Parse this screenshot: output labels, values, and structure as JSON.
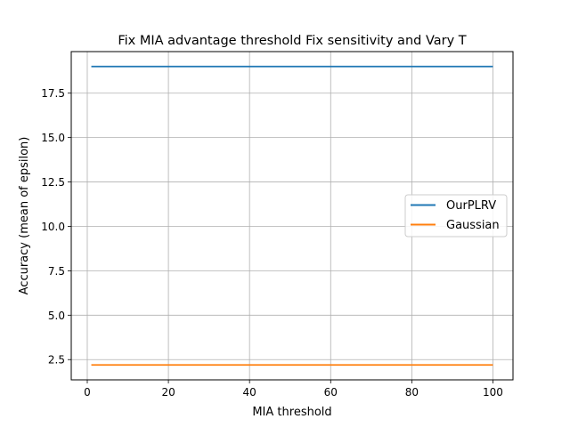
{
  "chart_data": {
    "type": "line",
    "title": "Fix MIA advantage threshold Fix sensitivity and Vary T",
    "xlabel": "MIA threshold",
    "ylabel": "Accuracy (mean of epsilon)",
    "xlim": [
      -3.95,
      104.95
    ],
    "ylim": [
      1.36,
      19.84
    ],
    "xticks": [
      0,
      20,
      40,
      60,
      80,
      100
    ],
    "yticks": [
      2.5,
      5.0,
      7.5,
      10.0,
      12.5,
      15.0,
      17.5
    ],
    "xtick_labels": [
      "0",
      "20",
      "40",
      "60",
      "80",
      "100"
    ],
    "ytick_labels": [
      "2.5",
      "5.0",
      "7.5",
      "10.0",
      "12.5",
      "15.0",
      "17.5"
    ],
    "grid": true,
    "legend_position": "center-right",
    "series": [
      {
        "name": "OurPLRV",
        "color": "#1f77b4",
        "x": [
          1,
          100
        ],
        "y": [
          19.0,
          19.0
        ]
      },
      {
        "name": "Gaussian",
        "color": "#ff7f0e",
        "x": [
          1,
          100
        ],
        "y": [
          2.2,
          2.2
        ]
      }
    ]
  }
}
